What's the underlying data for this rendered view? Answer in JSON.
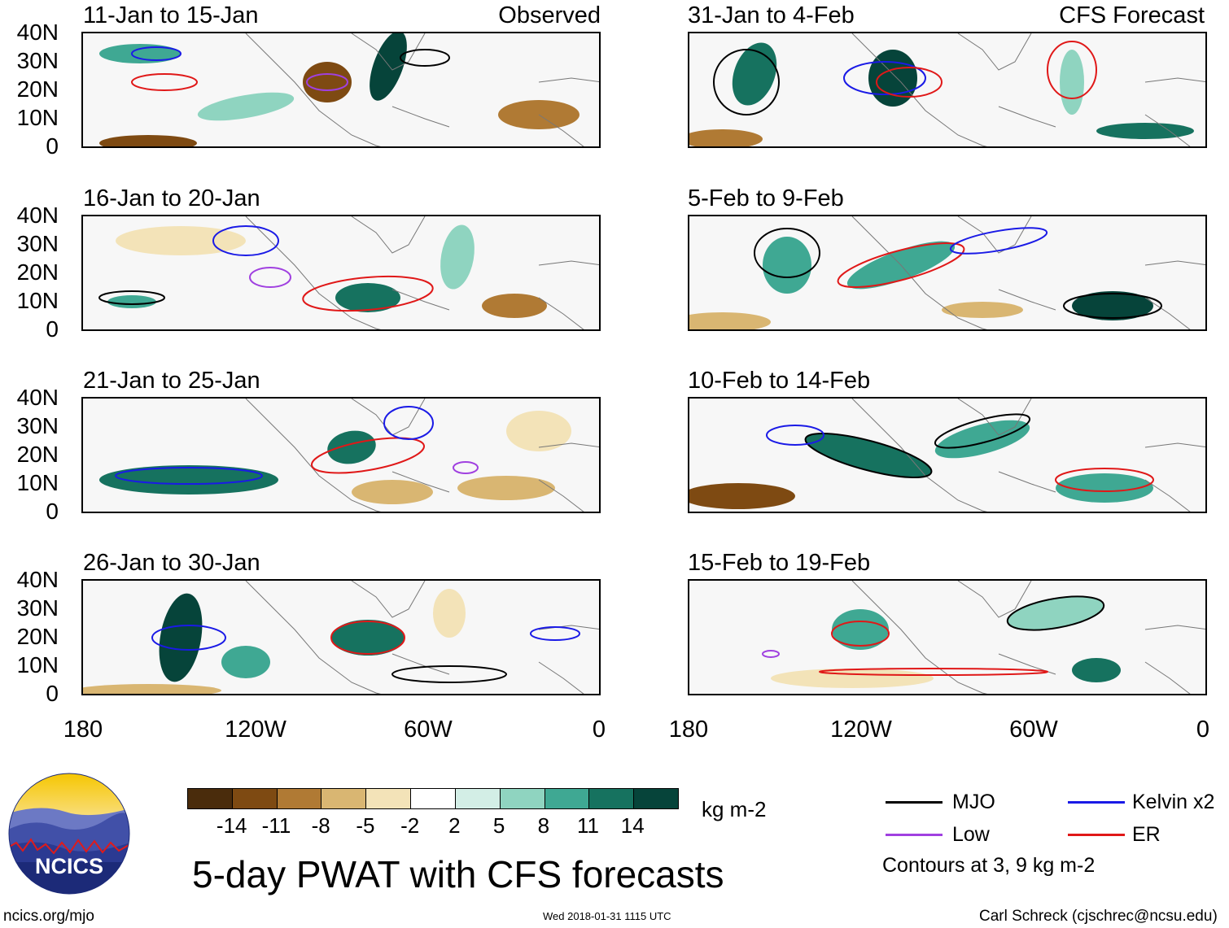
{
  "panels_left": [
    {
      "title": "11-Jan to 15-Jan",
      "label": "Observed"
    },
    {
      "title": "16-Jan to 20-Jan",
      "label": ""
    },
    {
      "title": "21-Jan to 25-Jan",
      "label": ""
    },
    {
      "title": "26-Jan to 30-Jan",
      "label": ""
    }
  ],
  "panels_right": [
    {
      "title": "31-Jan to 4-Feb",
      "label": "CFS Forecast"
    },
    {
      "title": "5-Feb to 9-Feb",
      "label": ""
    },
    {
      "title": "10-Feb to 14-Feb",
      "label": ""
    },
    {
      "title": "15-Feb to 19-Feb",
      "label": ""
    }
  ],
  "lat_labels": [
    "40N",
    "30N",
    "20N",
    "10N",
    "0"
  ],
  "lon_labels": [
    "180",
    "120W",
    "60W",
    "0"
  ],
  "colorbar": {
    "colors": [
      "#4a2c0c",
      "#7e4a12",
      "#b07a34",
      "#d9b672",
      "#f3e3b8",
      "#ffffff",
      "#d3eee6",
      "#8fd4c0",
      "#3fa893",
      "#16725f",
      "#06443a"
    ],
    "labels": [
      "-14",
      "-11",
      "-8",
      "-5",
      "-2",
      "2",
      "5",
      "8",
      "11",
      "14"
    ],
    "units": "kg m-2"
  },
  "legend": {
    "mjo": "MJO",
    "kelvin": "Kelvin x2",
    "low": "Low",
    "er": "ER",
    "mjo_color": "#000000",
    "kelvin_color": "#1a1ae6",
    "low_color": "#a040e0",
    "er_color": "#e01818",
    "contours": "Contours at 3, 9 kg m-2"
  },
  "main_title": "5-day PWAT with CFS forecasts",
  "footer": {
    "url": "ncics.org/mjo",
    "timestamp": "Wed 2018-01-31 1115 UTC",
    "author": "Carl Schreck (cjschrec@ncsu.edu)"
  },
  "logo": {
    "text": "NCICS"
  }
}
